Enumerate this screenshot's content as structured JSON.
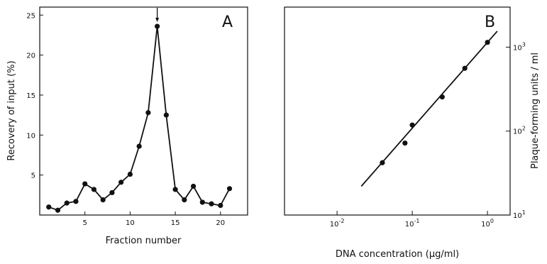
{
  "chart_data": [
    {
      "type": "line",
      "panel_letter": "A",
      "xlabel": "Fraction number",
      "ylabel": "Recovery of input (%)",
      "xlim": [
        0,
        23
      ],
      "ylim": [
        0,
        26
      ],
      "x_ticks": [
        5,
        10,
        15,
        20
      ],
      "y_ticks": [
        5,
        10,
        15,
        20,
        25
      ],
      "grid": false,
      "annotation": {
        "type": "arrow",
        "x": 13,
        "y": 23.6
      },
      "series": [
        {
          "x": [
            1,
            2,
            3,
            4,
            5,
            6,
            7,
            8,
            9,
            10,
            11,
            12,
            13,
            14,
            15,
            16,
            17,
            18,
            19,
            20,
            21
          ],
          "values": [
            1.0,
            0.6,
            1.5,
            1.7,
            3.9,
            3.2,
            1.9,
            2.8,
            4.1,
            5.1,
            8.6,
            12.8,
            23.6,
            12.5,
            3.2,
            1.9,
            3.6,
            1.6,
            1.4,
            1.2,
            3.3
          ]
        }
      ]
    },
    {
      "type": "scatter",
      "panel_letter": "B",
      "xlabel": "DNA concentration (µg/ml)",
      "ylabel": "Plaque-forming units / ml",
      "x_scale": "log",
      "y_scale": "log",
      "xlim": [
        0.002,
        2
      ],
      "ylim": [
        10,
        3000
      ],
      "x_tick_labels": [
        {
          "base": "10",
          "exp": "-2",
          "value": 0.01
        },
        {
          "base": "10",
          "exp": "-1",
          "value": 0.1
        },
        {
          "base": "10",
          "exp": "0",
          "value": 1
        }
      ],
      "y_tick_labels": [
        {
          "base": "10",
          "exp": "1",
          "value": 10
        },
        {
          "base": "10",
          "exp": "2",
          "value": 100
        },
        {
          "base": "10",
          "exp": "3",
          "value": 1000
        }
      ],
      "y_axis_side": "right",
      "grid": false,
      "points": {
        "x": [
          0.04,
          0.08,
          0.1,
          0.25,
          0.5,
          1.0
        ],
        "y": [
          42,
          72,
          118,
          255,
          560,
          1140
        ]
      },
      "fit_line": {
        "x": [
          0.021,
          1.35
        ],
        "y": [
          22,
          1550
        ]
      }
    }
  ]
}
